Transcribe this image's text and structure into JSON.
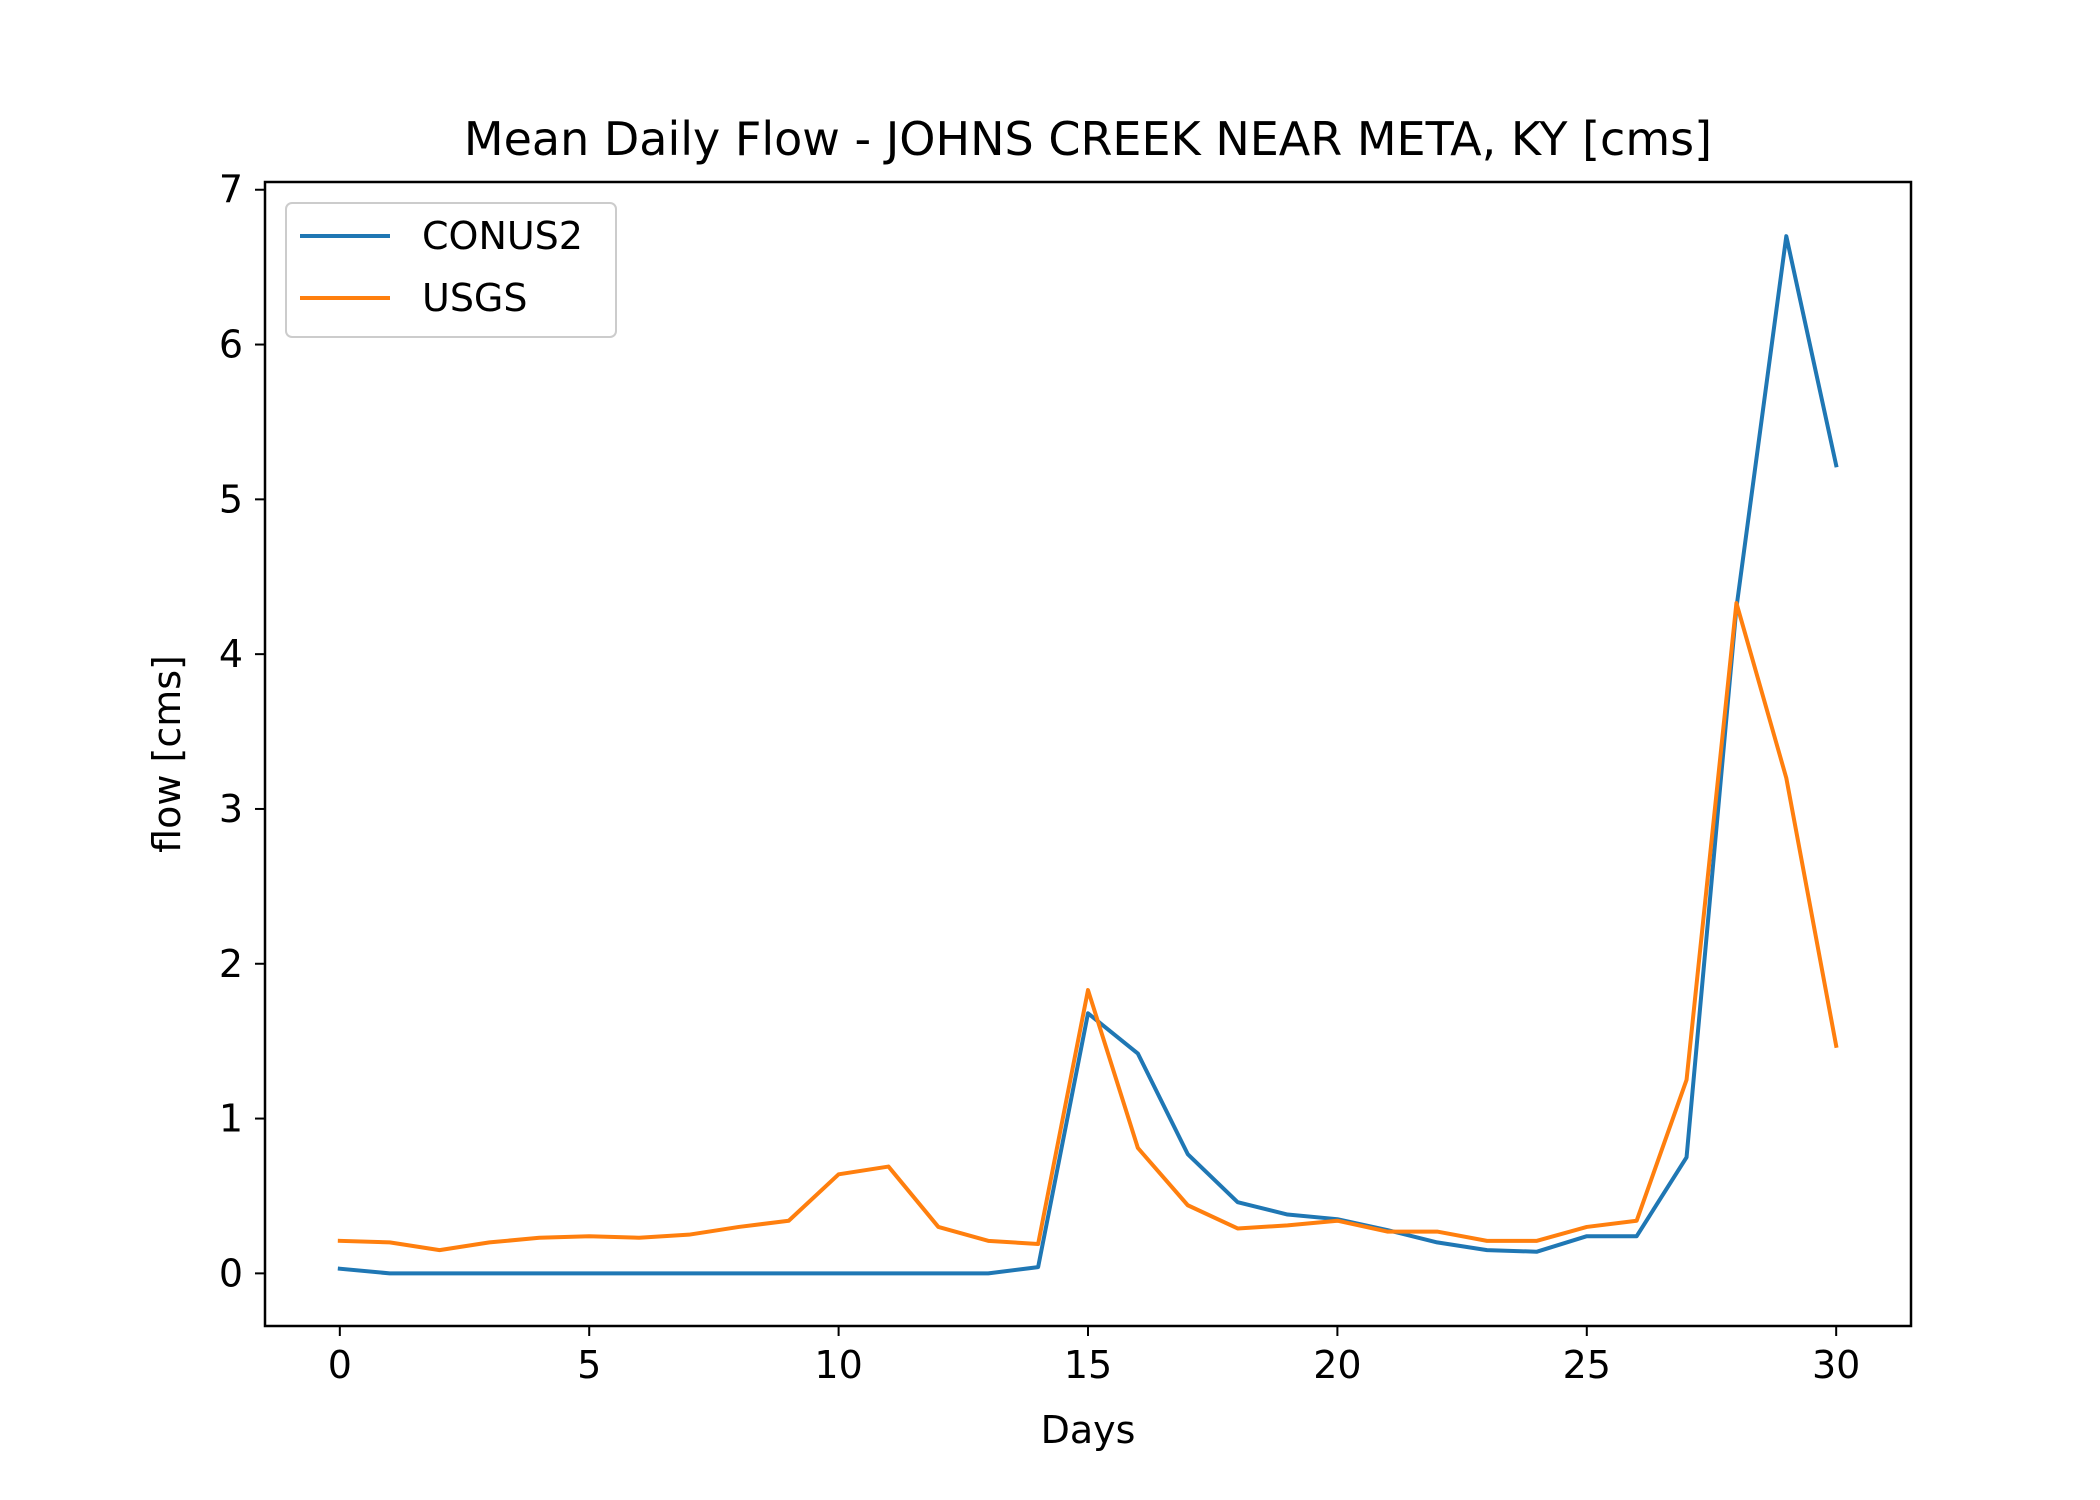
{
  "chart_data": {
    "type": "line",
    "title": "Mean Daily Flow - JOHNS CREEK NEAR META, KY [cms]",
    "xlabel": "Days",
    "ylabel": "flow [cms]",
    "xlim": [
      -1.5,
      31.5
    ],
    "ylim": [
      -0.34,
      7.05
    ],
    "xticks": [
      0,
      5,
      10,
      15,
      20,
      25,
      30
    ],
    "yticks": [
      0,
      1,
      2,
      3,
      4,
      5,
      6,
      7
    ],
    "grid": false,
    "legend_position": "top-left",
    "x": [
      0,
      1,
      2,
      3,
      4,
      5,
      6,
      7,
      8,
      9,
      10,
      11,
      12,
      13,
      14,
      15,
      16,
      17,
      18,
      19,
      20,
      21,
      22,
      23,
      24,
      25,
      26,
      27,
      28,
      29,
      30
    ],
    "series": [
      {
        "name": "CONUS2",
        "color": "#1f77b4",
        "values": [
          0.03,
          0.0,
          0.0,
          0.0,
          0.0,
          0.0,
          0.0,
          0.0,
          0.0,
          0.0,
          0.0,
          0.0,
          0.0,
          0.0,
          0.04,
          1.68,
          1.42,
          0.77,
          0.46,
          0.38,
          0.35,
          0.28,
          0.2,
          0.15,
          0.14,
          0.24,
          0.24,
          0.75,
          4.3,
          6.7,
          5.22
        ]
      },
      {
        "name": "USGS",
        "color": "#ff7f0e",
        "values": [
          0.21,
          0.2,
          0.15,
          0.2,
          0.23,
          0.24,
          0.23,
          0.25,
          0.3,
          0.34,
          0.64,
          0.69,
          0.3,
          0.21,
          0.19,
          1.83,
          0.81,
          0.44,
          0.29,
          0.31,
          0.34,
          0.27,
          0.27,
          0.21,
          0.21,
          0.3,
          0.34,
          1.25,
          4.33,
          3.2,
          1.47
        ]
      }
    ]
  }
}
